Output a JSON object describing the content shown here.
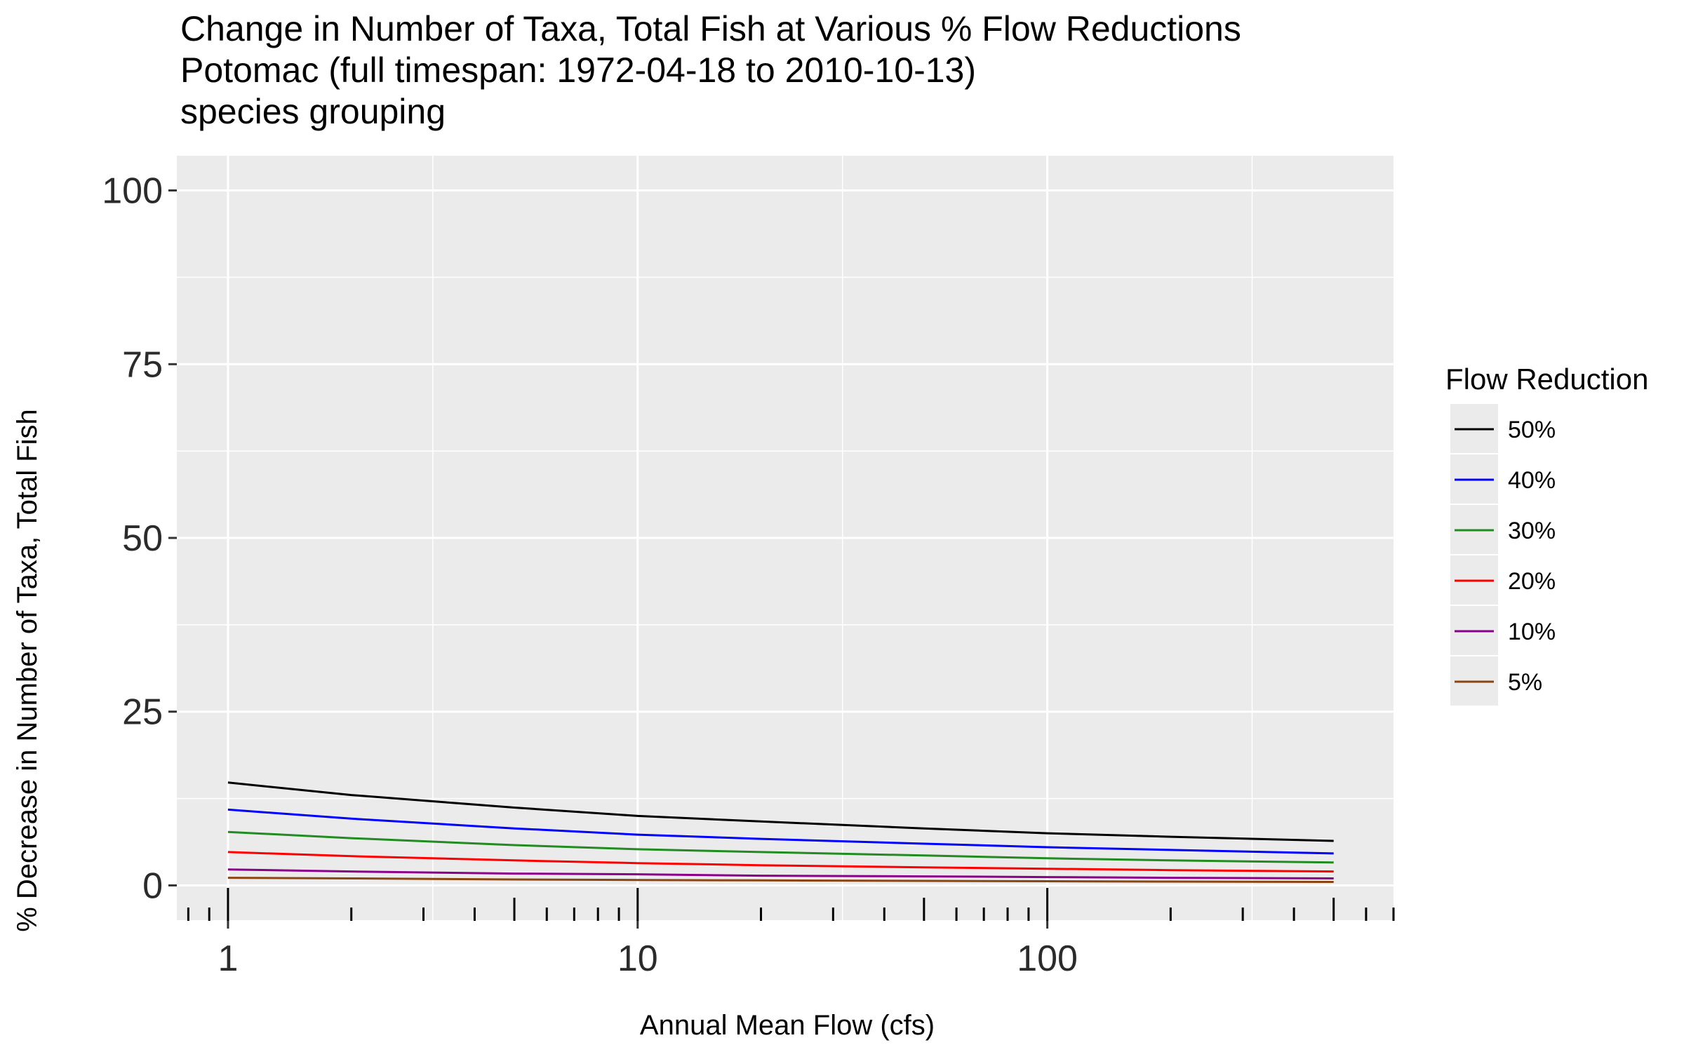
{
  "chart_data": {
    "type": "line",
    "title": "Change in Number of Taxa, Total Fish at Various % Flow Reductions",
    "subtitle_lines": [
      "Potomac (full timespan: 1972-04-18 to 2010-10-13)",
      "species grouping"
    ],
    "xlabel": "Annual Mean Flow (cfs)",
    "ylabel": "% Decrease in Number of Taxa, Total Fish",
    "x_scale": "log10",
    "xlim": [
      0.75,
      700
    ],
    "ylim": [
      -5,
      105
    ],
    "x_ticks": [
      {
        "value": 1,
        "label": "1"
      },
      {
        "value": 10,
        "label": "10"
      },
      {
        "value": 100,
        "label": "100"
      }
    ],
    "y_ticks": [
      {
        "value": 0,
        "label": "0"
      },
      {
        "value": 25,
        "label": "25"
      },
      {
        "value": 50,
        "label": "50"
      },
      {
        "value": 75,
        "label": "75"
      },
      {
        "value": 100,
        "label": "100"
      }
    ],
    "grid": true,
    "log_ticks": true,
    "legend": {
      "title": "Flow Reduction",
      "placement": "right"
    },
    "x": [
      1,
      2,
      5,
      10,
      20,
      50,
      100,
      200,
      500
    ],
    "series": [
      {
        "name": "50%",
        "color": "#000000",
        "values": [
          14.8,
          13.0,
          11.2,
          10.0,
          9.2,
          8.2,
          7.5,
          7.0,
          6.4
        ]
      },
      {
        "name": "40%",
        "color": "#0000ff",
        "values": [
          10.9,
          9.6,
          8.2,
          7.3,
          6.7,
          6.0,
          5.5,
          5.1,
          4.6
        ]
      },
      {
        "name": "30%",
        "color": "#228b22",
        "values": [
          7.7,
          6.8,
          5.8,
          5.2,
          4.8,
          4.3,
          3.9,
          3.6,
          3.3
        ]
      },
      {
        "name": "20%",
        "color": "#ff0000",
        "values": [
          4.8,
          4.2,
          3.6,
          3.2,
          2.9,
          2.6,
          2.4,
          2.2,
          2.0
        ]
      },
      {
        "name": "10%",
        "color": "#8b008b",
        "values": [
          2.3,
          2.0,
          1.7,
          1.6,
          1.4,
          1.3,
          1.2,
          1.1,
          1.0
        ]
      },
      {
        "name": "5%",
        "color": "#8b4513",
        "values": [
          1.1,
          1.0,
          0.85,
          0.78,
          0.72,
          0.65,
          0.6,
          0.55,
          0.5
        ]
      }
    ],
    "colors": {
      "panel_background": "#ebebeb",
      "grid": "#ffffff"
    }
  }
}
